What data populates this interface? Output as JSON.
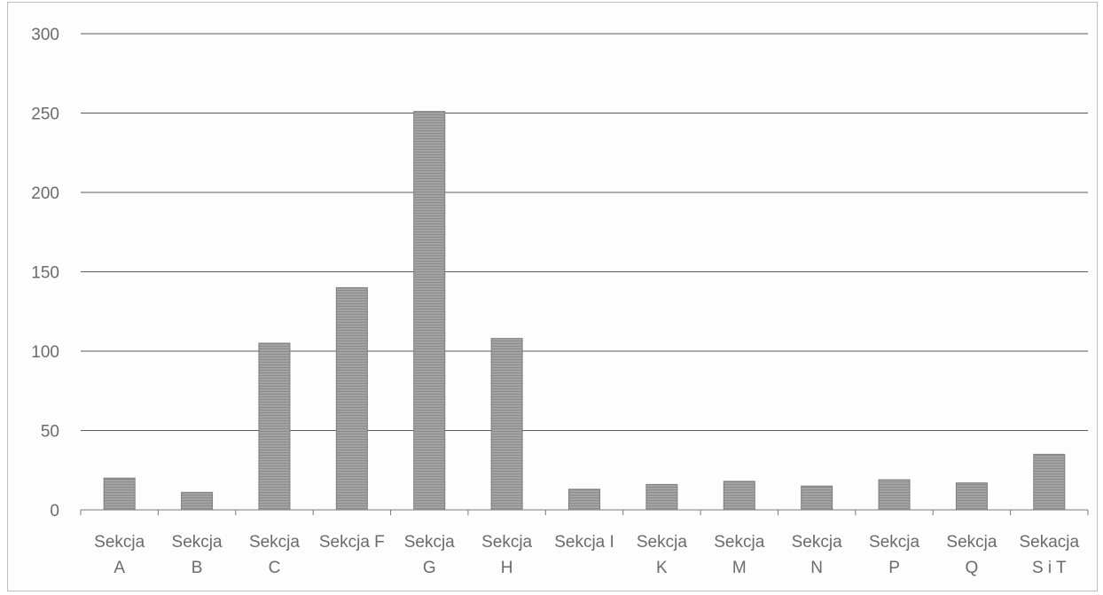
{
  "chart_data": {
    "type": "bar",
    "title": "",
    "xlabel": "",
    "ylabel": "",
    "ylim": [
      0,
      300
    ],
    "yticks": [
      0,
      50,
      100,
      150,
      200,
      250,
      300
    ],
    "grid": true,
    "legend": "none",
    "bar_color": "#9a9a9a",
    "categories": [
      [
        "Sekcja",
        "A"
      ],
      [
        "Sekcja",
        "B"
      ],
      [
        "Sekcja",
        "C"
      ],
      [
        "Sekcja F"
      ],
      [
        "Sekcja",
        "G"
      ],
      [
        "Sekcja",
        "H"
      ],
      [
        "Sekcja I"
      ],
      [
        "Sekcja",
        "K"
      ],
      [
        "Sekcja",
        "M"
      ],
      [
        "Sekcja",
        "N"
      ],
      [
        "Sekcja",
        "P"
      ],
      [
        "Sekcja",
        "Q"
      ],
      [
        "Sekacja",
        "S i T"
      ]
    ],
    "values": [
      20,
      11,
      105,
      140,
      251,
      108,
      13,
      16,
      18,
      15,
      19,
      17,
      35
    ]
  }
}
